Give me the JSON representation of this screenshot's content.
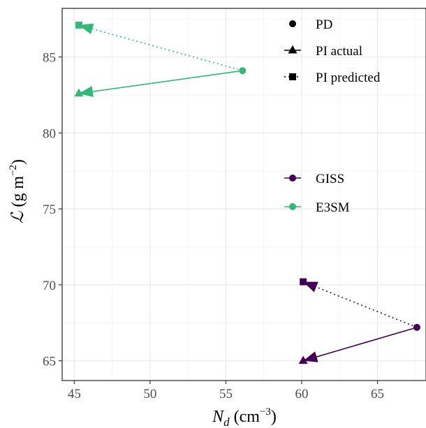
{
  "chart_data": {
    "type": "scatter",
    "xlabel": {
      "symbol": "N",
      "subscript": "d",
      "unit_open": " (cm",
      "unit_exp": "−3",
      "unit_close": ")"
    },
    "ylabel": {
      "symbol": "ℒ",
      "unit_open": " (g m",
      "unit_exp": "−2",
      "unit_close": ")"
    },
    "xlim": [
      44.2,
      68.2
    ],
    "ylim": [
      63.7,
      88.2
    ],
    "x_ticks": [
      45,
      50,
      55,
      60,
      65
    ],
    "y_ticks": [
      65,
      70,
      75,
      80,
      85
    ],
    "grid": true,
    "marker_legend": {
      "placement": "top-right",
      "entries": [
        {
          "marker": "circle",
          "line": "none",
          "label": "PD"
        },
        {
          "marker": "triangle",
          "line": "solid",
          "label": "PI actual"
        },
        {
          "marker": "square",
          "line": "dotted",
          "label": "PI predicted"
        }
      ]
    },
    "series_legend": {
      "placement": "right",
      "entries": [
        {
          "name": "GISS",
          "color": "#440154"
        },
        {
          "name": "E3SM",
          "color": "#35b779"
        }
      ]
    },
    "series": [
      {
        "name": "GISS",
        "color": "#440154",
        "pd": {
          "x": 67.6,
          "y": 67.2
        },
        "pi_actual": {
          "x": 60.1,
          "y": 65.0
        },
        "pi_predicted": {
          "x": 60.1,
          "y": 70.2
        }
      },
      {
        "name": "E3SM",
        "color": "#35b779",
        "pd": {
          "x": 56.1,
          "y": 84.1
        },
        "pi_actual": {
          "x": 45.3,
          "y": 82.6
        },
        "pi_predicted": {
          "x": 45.3,
          "y": 87.1
        }
      }
    ]
  }
}
